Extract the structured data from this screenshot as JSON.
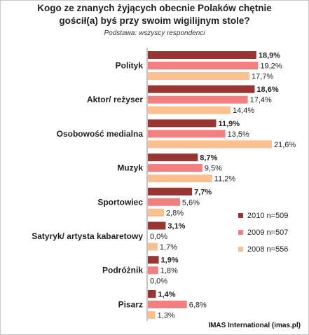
{
  "chart_data": {
    "type": "bar",
    "orientation": "horizontal",
    "title_line1": "Kogo ze znanych żyjących obecnie Polaków chętnie",
    "title_line2": "gościł(a) byś przy swoim wigilijnym stole?",
    "subtitle": "Podstawa: wszyscy respondenci",
    "source": "IMAS International (imas.pl)",
    "categories": [
      "Polityk",
      "Aktor/ reżyser",
      "Osobowość medialna",
      "Muzyk",
      "Sportowiec",
      "Satyryk/ artysta kabaretowy",
      "Podróżnik",
      "Pisarz"
    ],
    "series": [
      {
        "name": "2010 n=509",
        "color": "#983634",
        "values": [
          18.9,
          18.6,
          11.9,
          8.7,
          7.7,
          3.1,
          1.9,
          1.4
        ],
        "labels": [
          "18,9%",
          "18,6%",
          "11,9%",
          "8,7%",
          "7,7%",
          "3,1%",
          "1,9%",
          "1,4%"
        ]
      },
      {
        "name": "2009 n=507",
        "color": "#F28080",
        "values": [
          19.2,
          17.4,
          13.5,
          9.5,
          5.6,
          0.0,
          1.8,
          6.8
        ],
        "labels": [
          "19,2%",
          "17,4%",
          "13,5%",
          "9,5%",
          "5,6%",
          "0,0%",
          "1,8%",
          "6,8%"
        ]
      },
      {
        "name": "2008 n=556",
        "color": "#FAC090",
        "values": [
          17.7,
          14.4,
          21.6,
          11.2,
          2.8,
          1.7,
          0.0,
          1.3
        ],
        "labels": [
          "17,7%",
          "14,4%",
          "21,6%",
          "11,2%",
          "2,8%",
          "1,7%",
          "0,0%",
          "1,3%"
        ]
      }
    ],
    "xlim": [
      0,
      22
    ],
    "grid": false,
    "legend_position": "right"
  }
}
